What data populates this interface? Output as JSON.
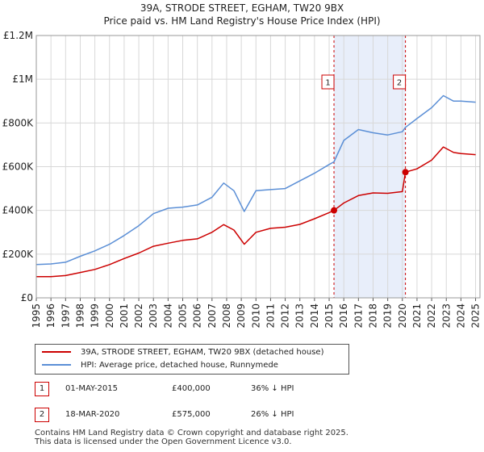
{
  "title_line1": "39A, STRODE STREET, EGHAM, TW20 9BX",
  "title_line2": "Price paid vs. HM Land Registry's House Price Index (HPI)",
  "colors": {
    "property": "#cc0000",
    "hpi": "#5b8fd6",
    "shade": "#e8eefa",
    "grid": "#d8d8d8"
  },
  "chart_data": {
    "type": "line",
    "title": "39A, STRODE STREET, EGHAM, TW20 9BX — Price paid vs. HM Land Registry's House Price Index (HPI)",
    "xlim": [
      1995,
      2025.3
    ],
    "ylim": [
      0,
      1200000
    ],
    "x_ticks": [
      1995,
      1996,
      1997,
      1998,
      1999,
      2000,
      2001,
      2002,
      2003,
      2004,
      2005,
      2006,
      2007,
      2008,
      2009,
      2010,
      2011,
      2012,
      2013,
      2014,
      2015,
      2016,
      2017,
      2018,
      2019,
      2020,
      2021,
      2022,
      2023,
      2024,
      2025
    ],
    "y_ticks": [
      {
        "value": 0,
        "label": "£0"
      },
      {
        "value": 200000,
        "label": "£200K"
      },
      {
        "value": 400000,
        "label": "£400K"
      },
      {
        "value": 600000,
        "label": "£600K"
      },
      {
        "value": 800000,
        "label": "£800K"
      },
      {
        "value": 1000000,
        "label": "£1M"
      },
      {
        "value": 1200000,
        "label": "£1.2M"
      }
    ],
    "shaded_range": [
      2015.33,
      2020.21
    ],
    "series": [
      {
        "name": "39A, STRODE STREET, EGHAM, TW20 9BX (detached house)",
        "color": "#cc0000",
        "x": [
          1995,
          1996,
          1997,
          1998,
          1999,
          2000,
          2001,
          2002,
          2003,
          2004,
          2005,
          2006,
          2007,
          2007.8,
          2008.5,
          2009.2,
          2010,
          2011,
          2012,
          2013,
          2014,
          2015,
          2015.33,
          2016,
          2017,
          2018,
          2019,
          2020,
          2020.21,
          2021,
          2022,
          2022.8,
          2023.5,
          2024,
          2025
        ],
        "y": [
          97000,
          97000,
          102000,
          116000,
          130000,
          152000,
          180000,
          205000,
          236000,
          250000,
          263000,
          270000,
          300000,
          335000,
          310000,
          245000,
          300000,
          318000,
          323000,
          336000,
          362000,
          390000,
          400000,
          434000,
          468000,
          480000,
          478000,
          486000,
          575000,
          590000,
          630000,
          690000,
          665000,
          660000,
          655000
        ]
      },
      {
        "name": "HPI: Average price, detached house, Runnymede",
        "color": "#5b8fd6",
        "x": [
          1995,
          1996,
          1997,
          1998,
          1999,
          2000,
          2001,
          2002,
          2003,
          2004,
          2005,
          2006,
          2007,
          2007.8,
          2008.5,
          2009.2,
          2010,
          2011,
          2012,
          2013,
          2014,
          2015,
          2015.33,
          2016,
          2017,
          2018,
          2019,
          2020,
          2020.21,
          2021,
          2022,
          2022.8,
          2023.5,
          2024,
          2025
        ],
        "y": [
          152000,
          155000,
          163000,
          190000,
          215000,
          245000,
          285000,
          330000,
          385000,
          410000,
          415000,
          425000,
          460000,
          525000,
          490000,
          395000,
          490000,
          495000,
          500000,
          535000,
          570000,
          610000,
          622000,
          720000,
          770000,
          755000,
          745000,
          760000,
          780000,
          820000,
          870000,
          925000,
          900000,
          900000,
          895000
        ]
      }
    ],
    "annotations": [
      {
        "label": "1",
        "x": 2015.33,
        "y": 400000
      },
      {
        "label": "2",
        "x": 2020.21,
        "y": 575000
      }
    ]
  },
  "legend": {
    "property_label": "39A, STRODE STREET, EGHAM, TW20 9BX (detached house)",
    "hpi_label": "HPI: Average price, detached house, Runnymede"
  },
  "transactions": [
    {
      "num": "1",
      "date": "01-MAY-2015",
      "price": "£400,000",
      "hpi": "36% ↓ HPI"
    },
    {
      "num": "2",
      "date": "18-MAR-2020",
      "price": "£575,000",
      "hpi": "26% ↓ HPI"
    }
  ],
  "footer": {
    "line1": "Contains HM Land Registry data © Crown copyright and database right 2025.",
    "line2": "This data is licensed under the Open Government Licence v3.0."
  }
}
